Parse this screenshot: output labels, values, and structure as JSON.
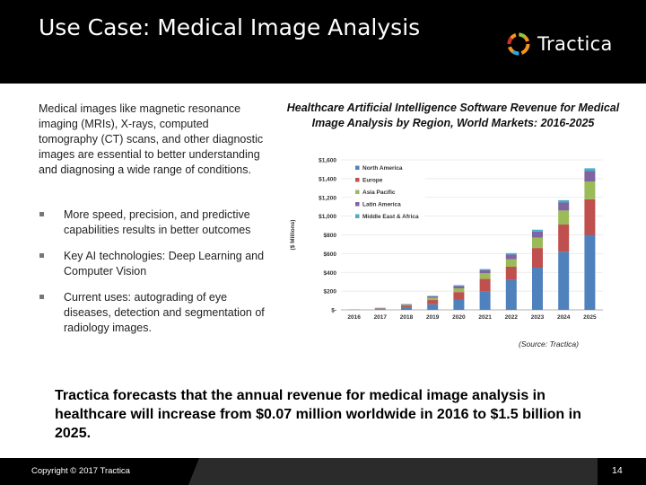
{
  "header": {
    "title": "Use Case:  Medical Image Analysis",
    "logo_text": "Tractica"
  },
  "intro": "Medical images like magnetic resonance imaging (MRIs), X-rays, computed tomography (CT) scans, and other diagnostic images are essential to better understanding and diagnosing a wide range of conditions.",
  "bullets": [
    "More speed, precision, and predictive capabilities results in better outcomes",
    "Key AI technologies:  Deep Learning and Computer Vision",
    "Current uses:  autograding of eye diseases, detection and segmentation of radiology images."
  ],
  "chart_heading": "Healthcare Artificial Intelligence Software Revenue for Medical Image Analysis by Region, World Markets: 2016-2025",
  "chart_data": {
    "type": "bar",
    "stacked": true,
    "title": "Healthcare Artificial Intelligence Software Revenue for Medical Image Analysis by Region, World Markets: 2016-2025",
    "xlabel": "",
    "ylabel": "($ Millions)",
    "ylim": [
      0,
      1600
    ],
    "yticks": [
      0,
      200,
      400,
      600,
      800,
      1000,
      1200,
      1400,
      1600
    ],
    "ytick_labels": [
      "$-",
      "$200",
      "$400",
      "$600",
      "$800",
      "$1,000",
      "$1,200",
      "$1,400",
      "$1,600"
    ],
    "categories": [
      "2016",
      "2017",
      "2018",
      "2019",
      "2020",
      "2021",
      "2022",
      "2023",
      "2024",
      "2025"
    ],
    "series": [
      {
        "name": "North America",
        "color": "#4f81bd",
        "values": [
          0.03,
          8,
          25,
          60,
          110,
          200,
          320,
          450,
          620,
          800
        ]
      },
      {
        "name": "Europe",
        "color": "#c0504d",
        "values": [
          0.02,
          5,
          18,
          45,
          80,
          130,
          140,
          210,
          290,
          380
        ]
      },
      {
        "name": "Asia Pacific",
        "color": "#9bbb59",
        "values": [
          0.01,
          3,
          10,
          25,
          40,
          60,
          80,
          110,
          150,
          190
        ]
      },
      {
        "name": "Latin America",
        "color": "#8064a2",
        "values": [
          0.005,
          2,
          6,
          15,
          25,
          35,
          50,
          65,
          85,
          110
        ]
      },
      {
        "name": "Middle East & Africa",
        "color": "#4bacc6",
        "values": [
          0.005,
          1,
          3,
          5,
          8,
          10,
          15,
          20,
          25,
          30
        ]
      }
    ],
    "legend_position": "top-left",
    "source": "(Source: Tractica)"
  },
  "summary": "Tractica forecasts that the annual revenue for medical image analysis in healthcare will increase from $0.07 million worldwide in 2016 to $1.5 billion in 2025.",
  "footer": {
    "copyright": "Copyright © 2017 Tractica",
    "page": "14"
  }
}
